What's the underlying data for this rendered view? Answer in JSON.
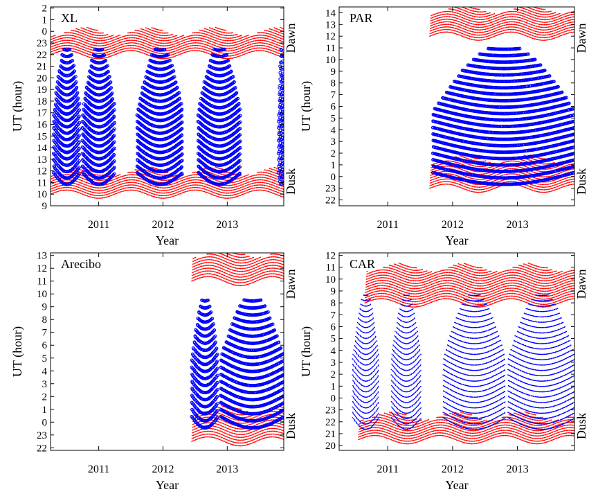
{
  "chart_data": [
    {
      "type": "scatter",
      "title": "XL",
      "xlabel": "Year",
      "ylabel": "UT (hour)",
      "right_labels": [
        "Dawn",
        "Dusk"
      ],
      "x_ticks": [
        "2011",
        "2012",
        "2013"
      ],
      "y_ticks": [
        "9",
        "10",
        "11",
        "12",
        "13",
        "14",
        "15",
        "16",
        "17",
        "18",
        "19",
        "20",
        "21",
        "22",
        "23",
        "0",
        "1",
        "2"
      ],
      "xlim": [
        2010.25,
        2013.88
      ],
      "ylim": [
        9,
        26.1
      ],
      "series": [
        {
          "role": "observation",
          "color": "#0000ff",
          "marker": "circle",
          "coverage": [
            [
              2010.3,
              2010.7
            ],
            [
              2010.75,
              2011.25
            ],
            [
              2011.6,
              2012.3
            ],
            [
              2012.55,
              2013.2
            ],
            [
              2013.8,
              2013.88
            ]
          ]
        },
        {
          "role": "twilight",
          "color": "#ff0000",
          "marker": "dot",
          "bands": [
            {
              "start": 2010.25,
              "end": 2013.88,
              "ut_start": 22.0,
              "ut_end": 24.0
            },
            {
              "start": 2010.25,
              "end": 2013.88,
              "ut_start": 10.0,
              "ut_end": 12.0
            }
          ]
        }
      ]
    },
    {
      "type": "scatter",
      "title": "PAR",
      "xlabel": "Year",
      "ylabel": "UT (hour)",
      "right_labels": [
        "Dawn",
        "Dusk"
      ],
      "x_ticks": [
        "2011",
        "2012",
        "2013"
      ],
      "y_ticks": [
        "22",
        "23",
        "0",
        "1",
        "2",
        "3",
        "4",
        "5",
        "6",
        "7",
        "8",
        "9",
        "10",
        "11",
        "12",
        "13",
        "14"
      ],
      "xlim": [
        2010.25,
        2013.88
      ],
      "ylim": [
        21.5,
        38.5
      ],
      "series": [
        {
          "role": "observation",
          "color": "#0000ff",
          "marker": "circle",
          "coverage": [
            [
              2011.7,
              2013.88
            ]
          ]
        },
        {
          "role": "twilight",
          "color": "#ff0000",
          "marker": "dot",
          "bands": [
            {
              "start": 2011.65,
              "end": 2013.88,
              "ut_start": 36.0,
              "ut_end": 38.3
            },
            {
              "start": 2011.65,
              "end": 2013.88,
              "ut_start": 23.0,
              "ut_end": 25.5
            }
          ]
        }
      ]
    },
    {
      "type": "scatter",
      "title": "Arecibo",
      "xlabel": "Year",
      "ylabel": "UT (hour)",
      "right_labels": [
        "Dawn",
        "Dusk"
      ],
      "x_ticks": [
        "2011",
        "2012",
        "2013"
      ],
      "y_ticks": [
        "22",
        "23",
        "0",
        "1",
        "2",
        "3",
        "4",
        "5",
        "6",
        "7",
        "8",
        "9",
        "10",
        "11",
        "12",
        "13"
      ],
      "xlim": [
        2010.25,
        2013.88
      ],
      "ylim": [
        21.8,
        37.2
      ],
      "series": [
        {
          "role": "observation",
          "color": "#0000ff",
          "marker": "circle",
          "coverage": [
            [
              2012.45,
              2012.85
            ],
            [
              2012.9,
              2013.88
            ]
          ]
        },
        {
          "role": "twilight",
          "color": "#ff0000",
          "marker": "dot",
          "bands": [
            {
              "start": 2012.45,
              "end": 2013.88,
              "ut_start": 35.0,
              "ut_end": 37.2
            },
            {
              "start": 2012.45,
              "end": 2013.88,
              "ut_start": 22.5,
              "ut_end": 25.0
            }
          ]
        }
      ]
    },
    {
      "type": "scatter",
      "title": "CAR",
      "xlabel": "Year",
      "ylabel": "UT (hour)",
      "right_labels": [
        "Dawn",
        "Dusk"
      ],
      "x_ticks": [
        "2011",
        "2012",
        "2013"
      ],
      "y_ticks": [
        "20",
        "21",
        "22",
        "23",
        "0",
        "1",
        "2",
        "3",
        "4",
        "5",
        "6",
        "7",
        "8",
        "9",
        "10",
        "11",
        "12"
      ],
      "xlim": [
        2010.25,
        2013.88
      ],
      "ylim": [
        19.6,
        36.2
      ],
      "series": [
        {
          "role": "observation",
          "color": "#0000ff",
          "marker": "dot",
          "coverage": [
            [
              2010.45,
              2010.85
            ],
            [
              2011.05,
              2011.5
            ],
            [
              2011.85,
              2012.8
            ],
            [
              2012.85,
              2013.88
            ]
          ]
        },
        {
          "role": "twilight",
          "color": "#ff0000",
          "marker": "dot",
          "bands": [
            {
              "start": 2010.65,
              "end": 2013.88,
              "ut_start": 32.0,
              "ut_end": 35.0
            },
            {
              "start": 2010.55,
              "end": 2013.88,
              "ut_start": 20.5,
              "ut_end": 22.5
            }
          ]
        }
      ]
    }
  ]
}
